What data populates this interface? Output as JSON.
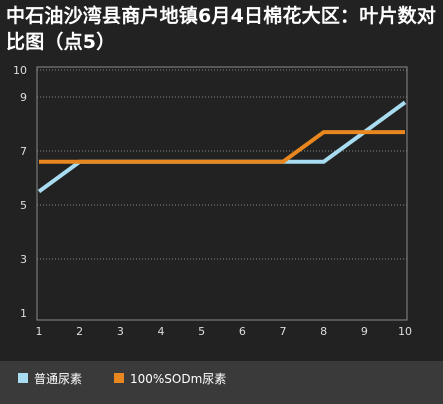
{
  "chart_data": {
    "type": "line",
    "title": "中石油沙湾县商户地镇6月4日棉花大区：叶片数对比图（点5）",
    "x": [
      1,
      2,
      3,
      4,
      5,
      6,
      7,
      8,
      9,
      10
    ],
    "xlim": [
      1,
      10
    ],
    "ylim": [
      1,
      10
    ],
    "yticks": [
      1,
      3,
      5,
      7,
      9,
      10
    ],
    "grid": true,
    "legend_position": "bottom",
    "series": [
      {
        "name": "普通尿素",
        "color": "#a8dcf0",
        "values": [
          5.5,
          6.6,
          6.6,
          6.6,
          6.6,
          6.6,
          6.6,
          6.6,
          7.7,
          8.8
        ]
      },
      {
        "name": "100%SODm尿素",
        "color": "#e8861f",
        "values": [
          6.6,
          6.6,
          6.6,
          6.6,
          6.6,
          6.6,
          6.6,
          7.7,
          7.7,
          7.7
        ]
      }
    ]
  }
}
